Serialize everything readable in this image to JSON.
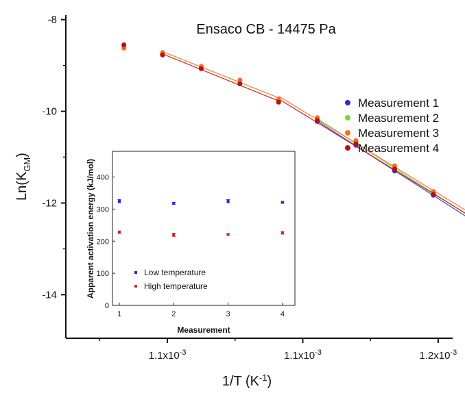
{
  "chart_data": [
    {
      "type": "scatter",
      "title": "Ensaco CB - 14475 Pa",
      "xlabel_main": "1/T (K",
      "xlabel_sup": "-1",
      "xlabel_close": ")",
      "ylabel_main": "Ln(K",
      "ylabel_sub": "GM",
      "ylabel_close": ")",
      "xlim": [
        0.0010075,
        0.0012075
      ],
      "ylim": [
        -14.95,
        -7.9
      ],
      "xtick_values": [
        0.00106,
        0.00113,
        0.0012
      ],
      "xtick_labels": [
        "1.1x10",
        "1.1x10",
        "1.2x10"
      ],
      "xtick_sup": "-3",
      "xtick_minor": [
        0.001025,
        0.001095,
        0.001165
      ],
      "ytick_values": [
        -8,
        -10,
        -12,
        -14
      ],
      "ytick_labels": [
        "-8",
        "-10",
        "-12",
        "-14"
      ],
      "ytick_minor": [
        -9,
        -11,
        -13
      ],
      "legend_position": "right",
      "x": [
        0.0010375,
        0.0010575,
        0.0010775,
        0.0010975,
        0.0011175,
        0.0011375,
        0.0011575,
        0.0011775,
        0.0011975,
        0.0012175,
        0.0012375
      ],
      "series": [
        {
          "name": "Measurement 1",
          "color": "#2b2bd6",
          "values": [
            null,
            null,
            null,
            null,
            null,
            -10.22,
            -10.74,
            -11.3,
            -11.83,
            -12.38,
            -12.92
          ]
        },
        {
          "name": "Measurement 2",
          "color": "#6fdc2a",
          "values": [
            null,
            null,
            null,
            null,
            null,
            -10.16,
            -10.69,
            -11.24,
            -11.79,
            -12.32,
            -12.84
          ]
        },
        {
          "name": "Measurement 3",
          "color": "#ff6a1a",
          "values": [
            -8.62,
            -8.72,
            -9.02,
            -9.32,
            -9.74,
            -10.14,
            -10.64,
            -11.19,
            -11.75,
            -12.27,
            -12.82
          ]
        },
        {
          "name": "Measurement 4",
          "color": "#b3121a",
          "values": [
            -8.55,
            -8.77,
            -9.07,
            -9.4,
            -9.8,
            -10.2,
            -10.71,
            -11.26,
            -11.81,
            -12.34,
            -12.87
          ]
        }
      ]
    },
    {
      "type": "scatter",
      "ylabel": "Apparent activation energy (kJ/mol)",
      "xlabel": "Measurement",
      "categories": [
        "1",
        "2",
        "3",
        "4"
      ],
      "ylim": [
        0,
        480
      ],
      "yticks": [
        0,
        100,
        200,
        300,
        400
      ],
      "legend_position": "lower-left",
      "series": [
        {
          "name": "Low temperature",
          "color": "#1f2bd6",
          "values": [
            325,
            318,
            325,
            321
          ],
          "errors": [
            5,
            3,
            5,
            3
          ]
        },
        {
          "name": "High temperature",
          "color": "#d62020",
          "values": [
            228,
            220,
            221,
            226
          ],
          "errors": [
            4,
            5,
            3,
            4
          ]
        }
      ]
    }
  ]
}
